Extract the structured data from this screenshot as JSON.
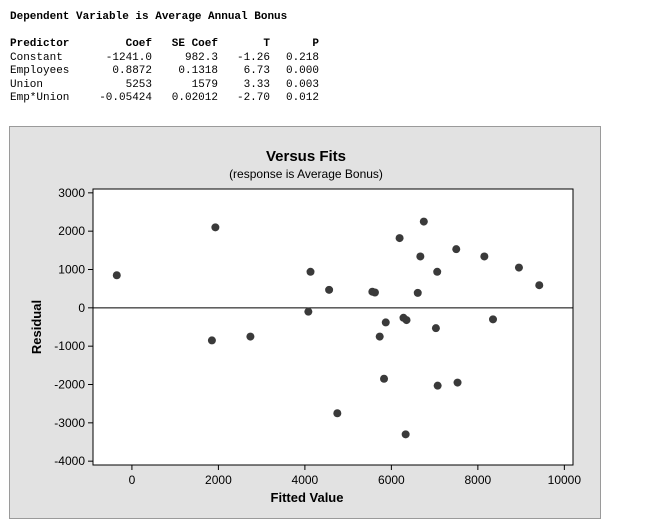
{
  "header": {
    "text": "Dependent Variable is Average Annual Bonus"
  },
  "coef_table": {
    "columns": [
      "Predictor",
      "Coef",
      "SE Coef",
      "T",
      "P"
    ],
    "rows": [
      [
        "Constant",
        "-1241.0",
        "982.3",
        "-1.26",
        "0.218"
      ],
      [
        "Employees",
        "0.8872",
        "0.1318",
        "6.73",
        "0.000"
      ],
      [
        "Union",
        "5253",
        "1579",
        "3.33",
        "0.003"
      ],
      [
        "Emp*Union",
        "-0.05424",
        "0.02012",
        "-2.70",
        "0.012"
      ]
    ]
  },
  "chart_data": {
    "type": "scatter",
    "title": "Versus Fits",
    "subtitle": "(response is Average Bonus)",
    "xlabel": "Fitted Value",
    "ylabel": "Residual",
    "xlim": [
      -900,
      10200
    ],
    "ylim": [
      -4100,
      3100
    ],
    "xticks": [
      0,
      2000,
      4000,
      6000,
      8000,
      10000
    ],
    "xtick_labels": [
      "0",
      "2000",
      "4000",
      "6000",
      "8000",
      "10000"
    ],
    "yticks": [
      -4000,
      -3000,
      -2000,
      -1000,
      0,
      1000,
      2000,
      3000
    ],
    "ytick_labels": [
      "-4000",
      "-3000",
      "-2000",
      "-1000",
      "0",
      "1000",
      "2000",
      "3000"
    ],
    "reference_line_y": 0,
    "grid": false,
    "marker_color": "#3a3a3a",
    "x": [
      -350,
      1850,
      1930,
      2740,
      4080,
      4130,
      4560,
      4750,
      5560,
      5620,
      5730,
      5830,
      5870,
      6190,
      6280,
      6350,
      6330,
      6610,
      6670,
      6750,
      7030,
      7060,
      7070,
      7500,
      7530,
      8150,
      8350,
      8950,
      9420
    ],
    "y": [
      850,
      -850,
      2100,
      -750,
      -100,
      940,
      470,
      -2750,
      420,
      400,
      -750,
      -1850,
      -380,
      1820,
      -260,
      -320,
      -3300,
      390,
      1340,
      2250,
      -530,
      940,
      -2030,
      1530,
      -1950,
      1340,
      -300,
      1050,
      590
    ]
  }
}
